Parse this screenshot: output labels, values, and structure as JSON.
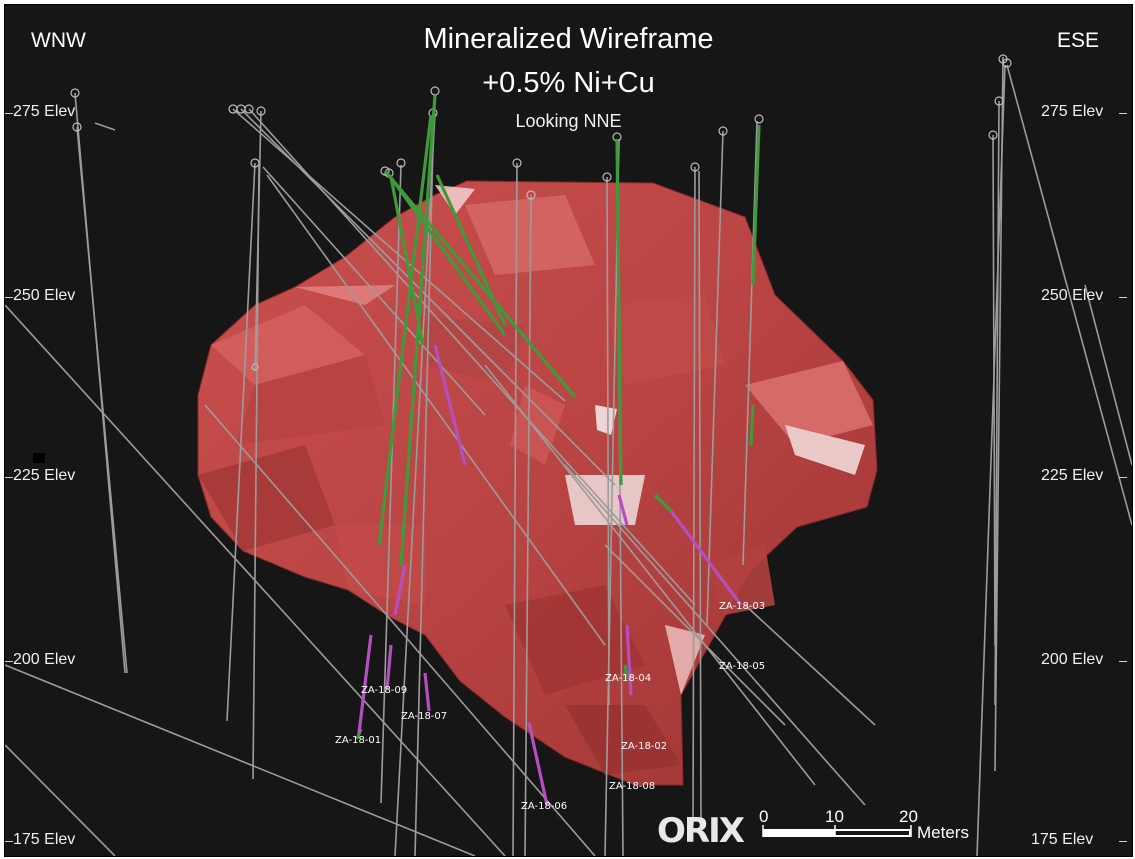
{
  "title": {
    "line1": "Mineralized Wireframe",
    "line2": "+0.5% Ni+Cu",
    "line3": "Looking NNE"
  },
  "directions": {
    "left": "WNW",
    "right": "ESE"
  },
  "elevations": {
    "e275": "275 Elev",
    "e250": "250 Elev",
    "e225": "225 Elev",
    "e200": "200 Elev",
    "e175": "175 Elev"
  },
  "drillholes": {
    "za1801": "ZA-18-01",
    "za1802": "ZA-18-02",
    "za1803": "ZA-18-03",
    "za1804": "ZA-18-04",
    "za1805": "ZA-18-05",
    "za1806": "ZA-18-06",
    "za1807": "ZA-18-07",
    "za1808": "ZA-18-08",
    "za1809": "ZA-18-09"
  },
  "scalebar": {
    "tick0": "0",
    "tick10": "10",
    "tick20": "20",
    "unit": "Meters"
  },
  "logo": "ORIX",
  "colors": {
    "background": "#171616",
    "wireframe": "#c44a4a",
    "drill_trace": "#9a9a9a",
    "mineralized_green": "#3f9a3a",
    "mineralized_purple": "#b54fc0"
  }
}
